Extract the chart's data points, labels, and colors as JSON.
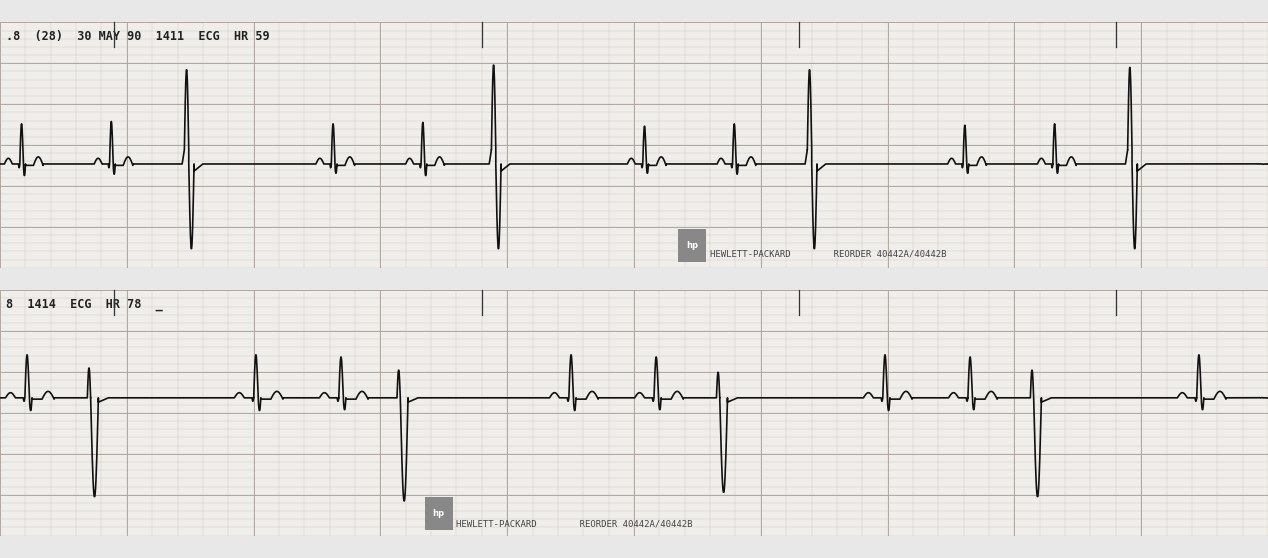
{
  "fig_width": 12.68,
  "fig_height": 5.58,
  "dpi": 100,
  "bg_color": "#f0eeea",
  "strip_bg": "#f0eeea",
  "grid_minor_color": "#c8c0b8",
  "grid_major_color": "#b0a8a0",
  "ecg_color": "#111111",
  "separator_color": "#e8e8e8",
  "strip1_header": ".8  (28)  30 MAY 90  1411  ECG  HR 59",
  "strip2_header": "8  1414  ECG  HR 78  _",
  "footer_text": "HEWLETT-PACKARD        REORDER 40442A/40442B",
  "header_color": "#222222",
  "tick_color": "#333333"
}
